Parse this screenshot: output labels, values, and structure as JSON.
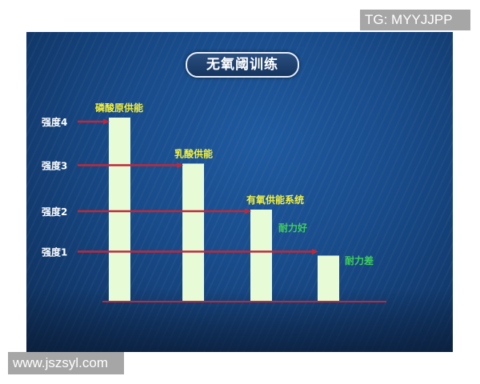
{
  "title": "无氧阈训练",
  "watermarks": {
    "top_right": "TG: MYYJJPP",
    "bottom_left": "www.jszsyl.com"
  },
  "chart_data": {
    "type": "bar",
    "title": "无氧阈训练",
    "categories": [
      "磷酸原供能",
      "乳酸供能",
      "有氧供能系统",
      ""
    ],
    "values": [
      4,
      3,
      2,
      1
    ],
    "y_tick_labels": [
      "强度1",
      "强度2",
      "强度3",
      "强度4"
    ],
    "y_ticks": [
      1,
      2,
      3,
      4
    ],
    "ylim": [
      0,
      4
    ],
    "annotations": [
      {
        "text": "耐力好",
        "near_category": 2
      },
      {
        "text": "耐力差",
        "near_category": 3
      }
    ],
    "grid": false,
    "colors": {
      "bar": "#e6fbd6",
      "arrow": "#c0283a",
      "category_label": "#f2f03c",
      "annotation": "#3fcf5a",
      "tick_label": "#ffffff"
    }
  }
}
